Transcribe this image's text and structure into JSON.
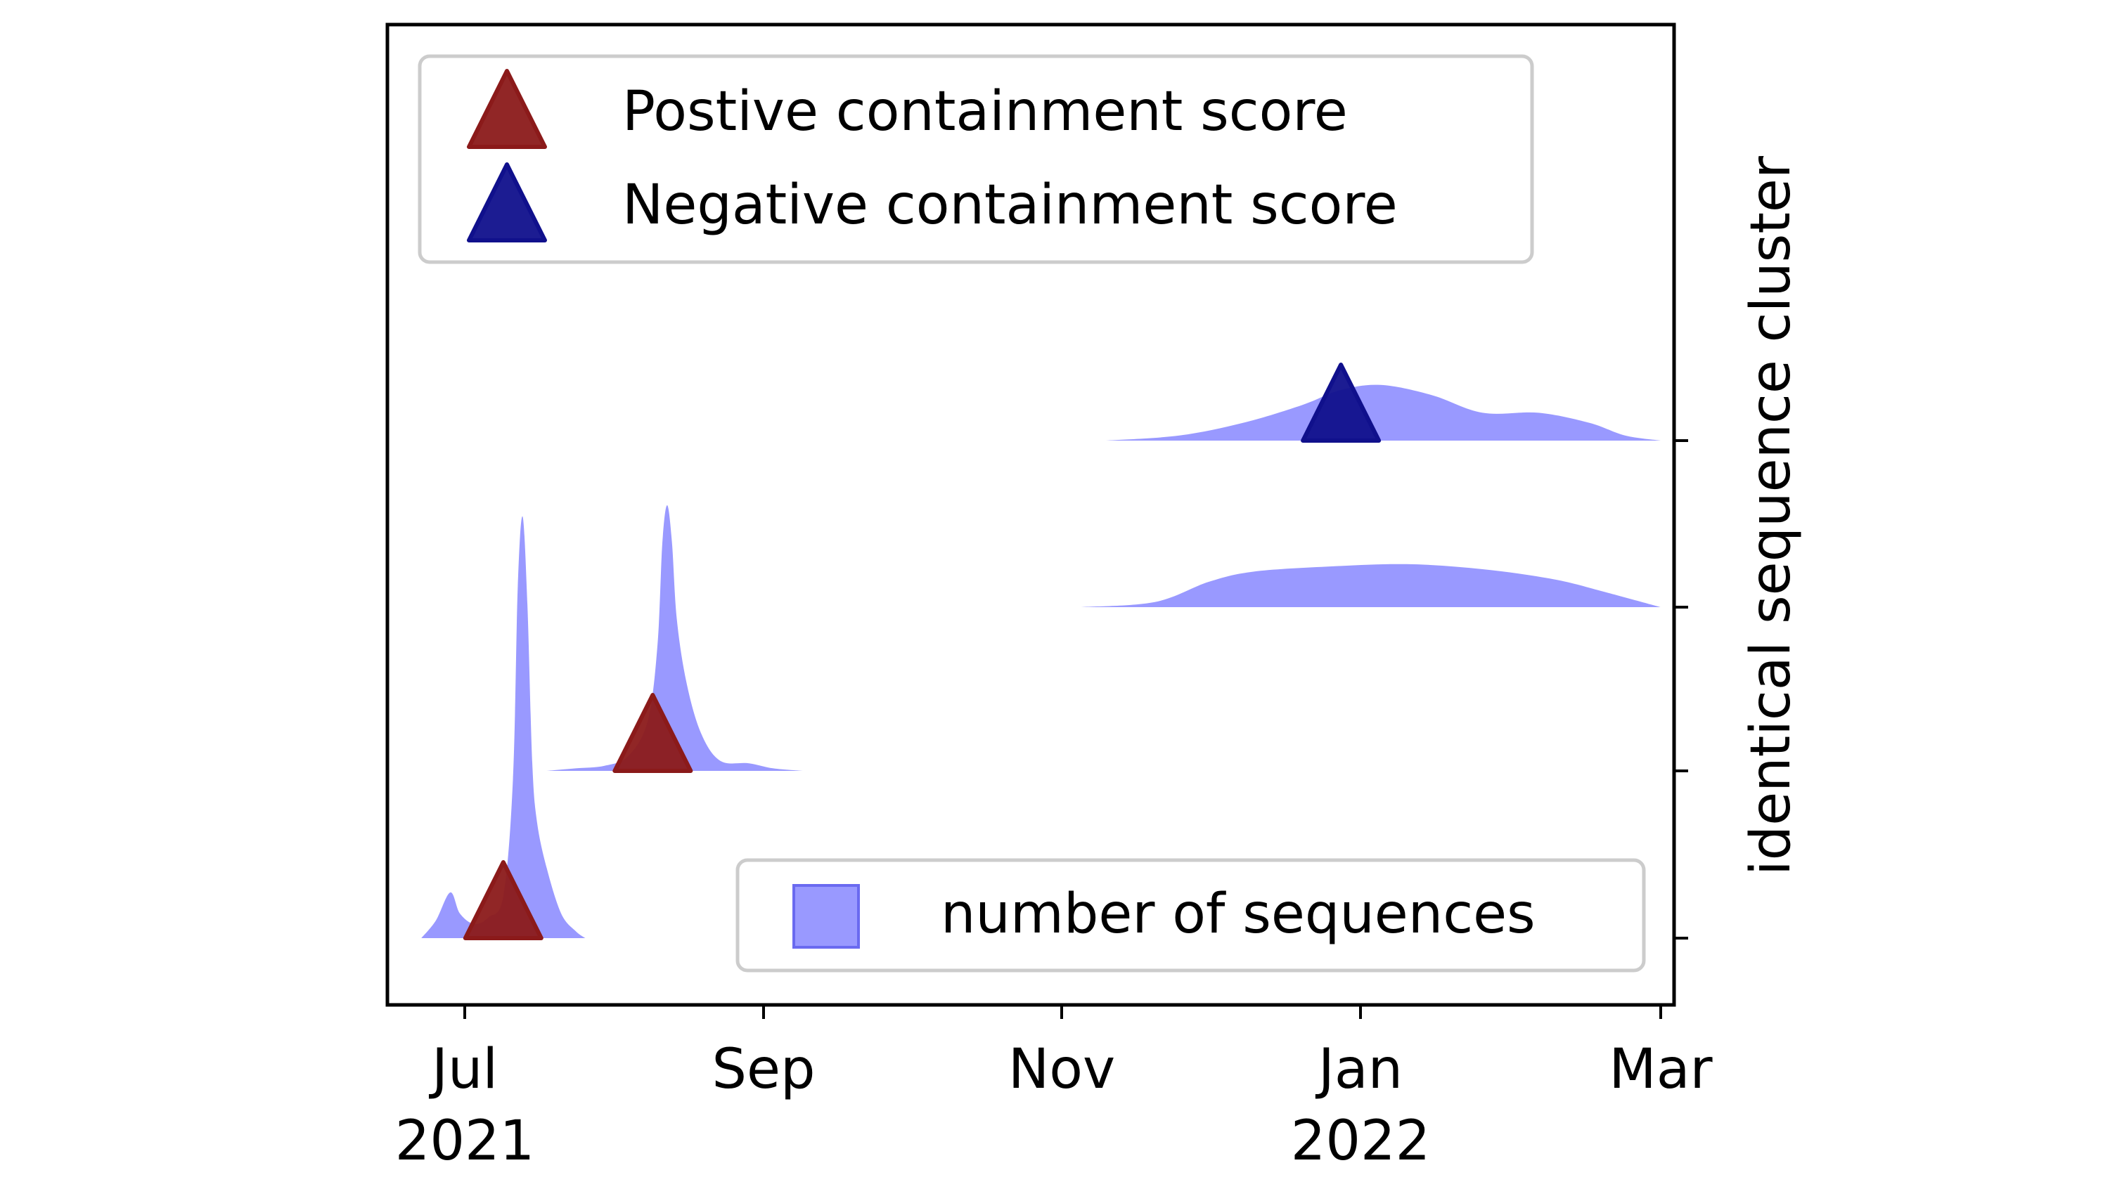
{
  "chart_data": {
    "type": "ridgeline",
    "title": "",
    "xlabel": "",
    "ylabel": "identical sequence cluster",
    "x_range": [
      "2021-06-14",
      "2022-03-01"
    ],
    "x_ticks": [
      {
        "date": "2021-07-01",
        "label": "Jul",
        "sublabel": "2021"
      },
      {
        "date": "2021-09-01",
        "label": "Sep",
        "sublabel": ""
      },
      {
        "date": "2021-11-01",
        "label": "Nov",
        "sublabel": ""
      },
      {
        "date": "2022-01-01",
        "label": "Jan",
        "sublabel": "2022"
      },
      {
        "date": "2022-03-01",
        "label": "Mar",
        "sublabel": ""
      }
    ],
    "y_tick_labels": [
      "",
      "",
      "",
      ""
    ],
    "grid": false,
    "colors": {
      "density": "#9999ff",
      "positive": "#8b1a1a",
      "negative": "#10108c",
      "axis": "#000000"
    },
    "clusters": [
      {
        "score": "positive",
        "marker_date": "2021-07-09",
        "density": [
          [
            "2021-06-22",
            0
          ],
          [
            "2021-06-25",
            0.05
          ],
          [
            "2021-06-28",
            0.13
          ],
          [
            "2021-06-30",
            0.07
          ],
          [
            "2021-07-03",
            0.04
          ],
          [
            "2021-07-06",
            0.06
          ],
          [
            "2021-07-09",
            0.12
          ],
          [
            "2021-07-11",
            0.45
          ],
          [
            "2021-07-12",
            1.0
          ],
          [
            "2021-07-13",
            1.2
          ],
          [
            "2021-07-14",
            0.95
          ],
          [
            "2021-07-15",
            0.5
          ],
          [
            "2021-07-16",
            0.33
          ],
          [
            "2021-07-18",
            0.2
          ],
          [
            "2021-07-21",
            0.07
          ],
          [
            "2021-07-24",
            0.02
          ],
          [
            "2021-07-26",
            0
          ]
        ]
      },
      {
        "score": "positive",
        "marker_date": "2021-08-09",
        "density": [
          [
            "2021-07-18",
            0
          ],
          [
            "2021-07-24",
            0.01
          ],
          [
            "2021-07-30",
            0.02
          ],
          [
            "2021-08-04",
            0.06
          ],
          [
            "2021-08-08",
            0.2
          ],
          [
            "2021-08-10",
            0.5
          ],
          [
            "2021-08-11",
            0.9
          ],
          [
            "2021-08-12",
            1.05
          ],
          [
            "2021-08-13",
            0.9
          ],
          [
            "2021-08-14",
            0.6
          ],
          [
            "2021-08-16",
            0.35
          ],
          [
            "2021-08-19",
            0.15
          ],
          [
            "2021-08-23",
            0.04
          ],
          [
            "2021-08-29",
            0.03
          ],
          [
            "2021-09-03",
            0.01
          ],
          [
            "2021-09-09",
            0
          ]
        ]
      },
      {
        "score": "none",
        "marker_date": "",
        "density": [
          [
            "2021-11-05",
            0
          ],
          [
            "2021-11-20",
            0.02
          ],
          [
            "2021-12-01",
            0.1
          ],
          [
            "2021-12-10",
            0.14
          ],
          [
            "2021-12-25",
            0.16
          ],
          [
            "2022-01-10",
            0.17
          ],
          [
            "2022-01-25",
            0.15
          ],
          [
            "2022-02-08",
            0.11
          ],
          [
            "2022-02-18",
            0.06
          ],
          [
            "2022-03-01",
            0
          ]
        ]
      },
      {
        "score": "negative",
        "marker_date": "2021-12-28",
        "density": [
          [
            "2021-11-10",
            0
          ],
          [
            "2021-11-25",
            0.02
          ],
          [
            "2021-12-08",
            0.07
          ],
          [
            "2021-12-20",
            0.14
          ],
          [
            "2021-12-28",
            0.2
          ],
          [
            "2022-01-05",
            0.22
          ],
          [
            "2022-01-15",
            0.18
          ],
          [
            "2022-01-25",
            0.11
          ],
          [
            "2022-02-05",
            0.11
          ],
          [
            "2022-02-15",
            0.07
          ],
          [
            "2022-02-22",
            0.02
          ],
          [
            "2022-03-01",
            0
          ]
        ]
      }
    ],
    "legend_markers": {
      "placement": "upper-left",
      "entries": [
        {
          "label": "Postive containment score",
          "color": "#8b1a1a"
        },
        {
          "label": "Negative containment score",
          "color": "#10108c"
        }
      ]
    },
    "legend_density": {
      "placement": "lower-right",
      "label": "number of sequences",
      "color": "#9999ff"
    }
  }
}
